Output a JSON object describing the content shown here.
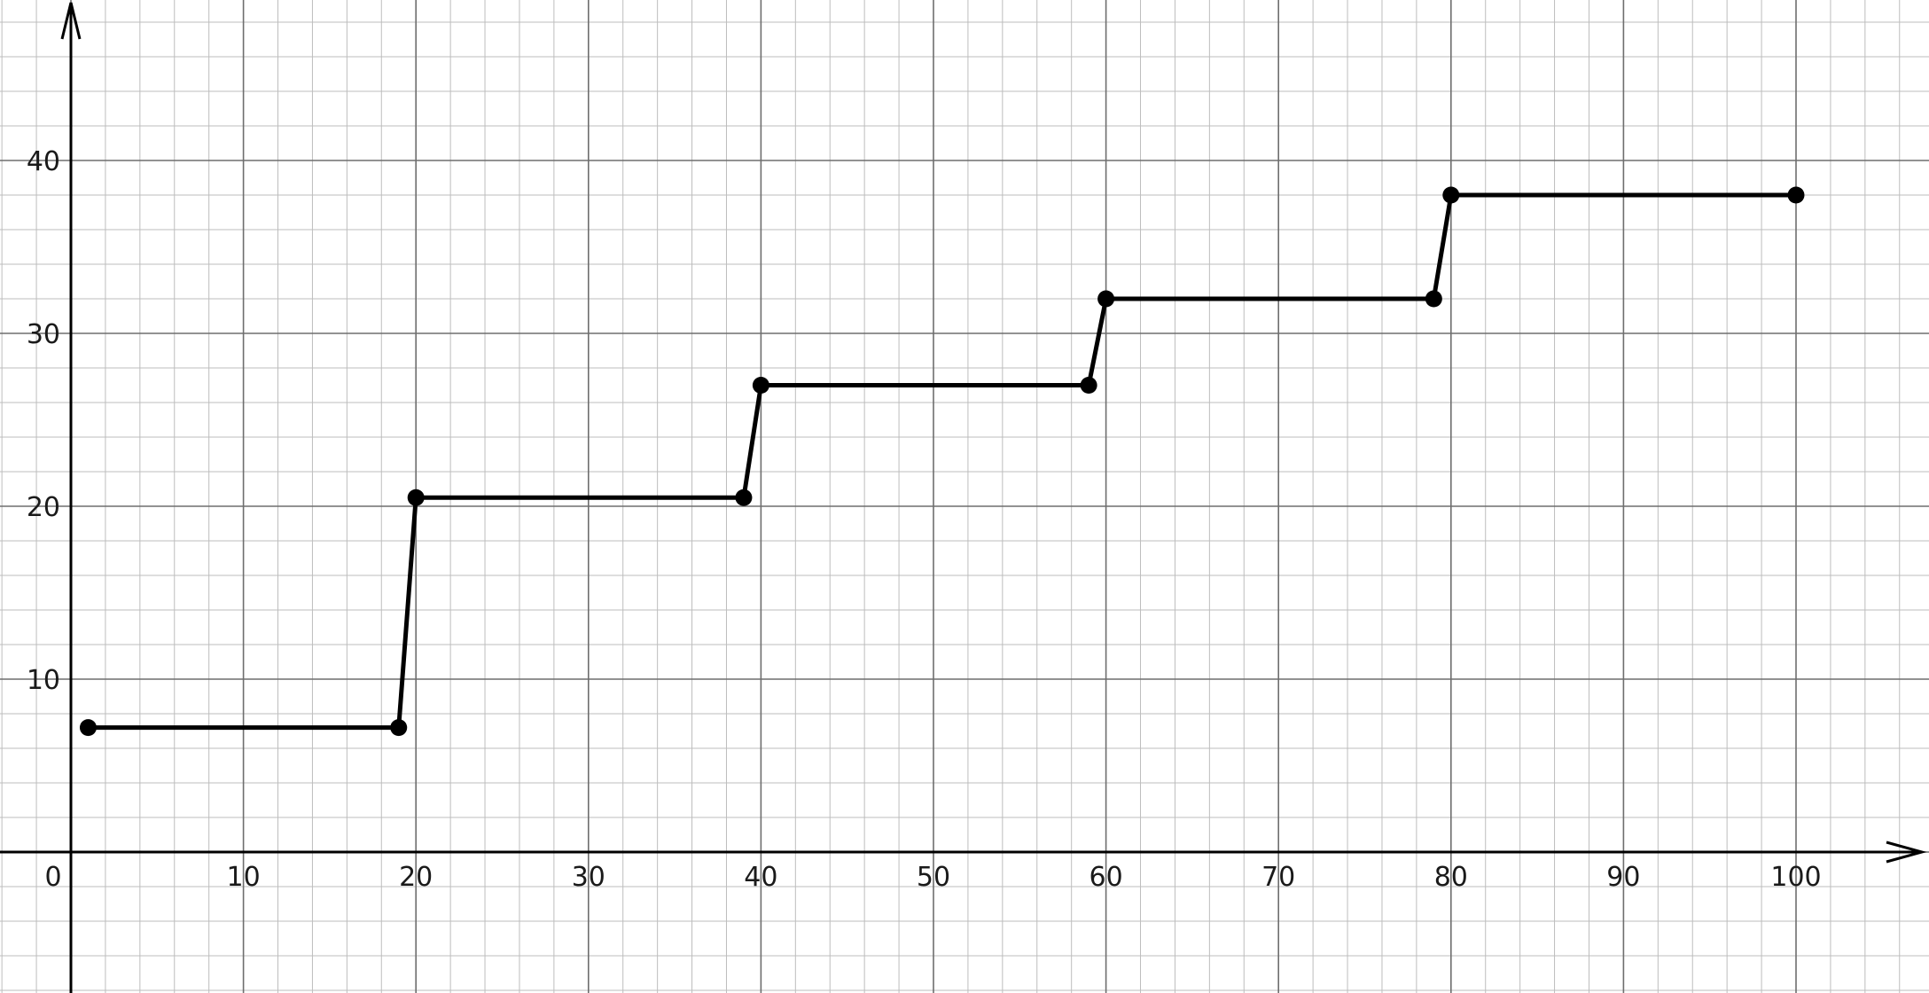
{
  "chart_data": {
    "type": "line",
    "title": "",
    "xlabel": "",
    "ylabel": "",
    "xlim": [
      -4,
      107
    ],
    "ylim": [
      -8,
      49
    ],
    "grid": true,
    "grid_minor_step": 2,
    "grid_major_step": 10,
    "x_ticks": [
      10,
      20,
      30,
      40,
      50,
      60,
      70,
      80,
      90,
      100
    ],
    "y_ticks": [
      10,
      20,
      30,
      40
    ],
    "x_tick_labels": [
      "10",
      "20",
      "30",
      "40",
      "50",
      "60",
      "70",
      "80",
      "90",
      "100"
    ],
    "y_tick_labels": [
      "10",
      "20",
      "30",
      "40"
    ],
    "origin_label": "0",
    "series": [
      {
        "x": [
          1,
          19,
          20,
          39,
          40,
          59,
          60,
          79,
          80,
          100
        ],
        "y": [
          7.2,
          7.2,
          20.5,
          20.5,
          27,
          27,
          32,
          32,
          38,
          38
        ],
        "color": "#000000",
        "markers": true
      }
    ]
  }
}
